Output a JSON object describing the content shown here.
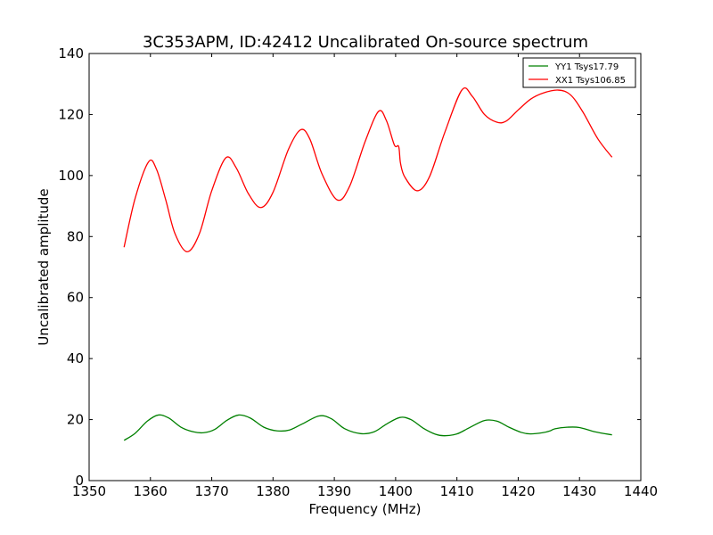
{
  "chart_data": {
    "type": "line",
    "title": "3C353APM, ID:42412 Uncalibrated On-source spectrum",
    "xlabel": "Frequency (MHz)",
    "ylabel": "Uncalibrated amplitude",
    "xlim": [
      1350,
      1440
    ],
    "ylim": [
      0,
      140
    ],
    "xticks": [
      1350,
      1360,
      1370,
      1380,
      1390,
      1400,
      1410,
      1420,
      1430,
      1440
    ],
    "yticks": [
      0,
      20,
      40,
      60,
      80,
      100,
      120,
      140
    ],
    "grid": false,
    "legend_position": "top-right",
    "series": [
      {
        "name": "YY1 Tsys17.79",
        "color": "#008000",
        "x": [
          1355.7,
          1357.5,
          1359.5,
          1361.3,
          1363.0,
          1365.0,
          1367.0,
          1368.7,
          1370.5,
          1372.5,
          1374.4,
          1376.3,
          1378.5,
          1380.7,
          1382.7,
          1384.7,
          1387.5,
          1389.5,
          1391.7,
          1394.3,
          1396.5,
          1398.5,
          1400.7,
          1402.5,
          1404.5,
          1406.5,
          1408.0,
          1410.0,
          1412.0,
          1414.5,
          1416.5,
          1418.5,
          1420.5,
          1422.0,
          1424.0,
          1425.2,
          1426.0,
          1428.0,
          1430.0,
          1432.5,
          1435.3
        ],
        "y": [
          13.2,
          15.5,
          19.5,
          21.5,
          20.5,
          17.5,
          16.0,
          15.7,
          16.8,
          19.8,
          21.5,
          20.5,
          17.5,
          16.3,
          16.6,
          18.5,
          21.2,
          20.3,
          17.0,
          15.4,
          16.0,
          18.5,
          20.7,
          20.0,
          17.2,
          15.2,
          14.7,
          15.3,
          17.3,
          19.7,
          19.5,
          17.5,
          15.8,
          15.3,
          15.7,
          16.3,
          17.0,
          17.5,
          17.4,
          16.0,
          15.0
        ]
      },
      {
        "name": "XX1 Tsys106.85",
        "color": "#ff0000",
        "x": [
          1355.7,
          1357.5,
          1359.7,
          1361.0,
          1362.5,
          1364.0,
          1366.0,
          1368.0,
          1370.0,
          1372.3,
          1374.0,
          1376.0,
          1378.0,
          1380.0,
          1382.5,
          1384.5,
          1386.0,
          1388.0,
          1390.5,
          1392.5,
          1395.0,
          1397.2,
          1398.5,
          1399.8,
          1400.5,
          1400.8,
          1401.5,
          1403.5,
          1405.5,
          1408.0,
          1410.8,
          1412.5,
          1414.5,
          1416.5,
          1418.0,
          1420.0,
          1422.0,
          1424.0,
          1426.5,
          1428.5,
          1430.5,
          1433.0,
          1435.3
        ],
        "y": [
          76.5,
          92.5,
          104.5,
          102.0,
          92.0,
          81.0,
          75.0,
          81.0,
          95.0,
          105.8,
          102.5,
          94.0,
          89.5,
          94.5,
          108.5,
          115.0,
          112.0,
          100.5,
          92.0,
          96.5,
          111.0,
          121.0,
          118.0,
          110.0,
          109.5,
          104.0,
          99.5,
          95.0,
          99.5,
          114.0,
          128.0,
          126.0,
          120.0,
          117.5,
          117.8,
          121.5,
          125.0,
          127.0,
          128.0,
          126.5,
          121.0,
          112.0,
          106.0
        ]
      }
    ]
  }
}
